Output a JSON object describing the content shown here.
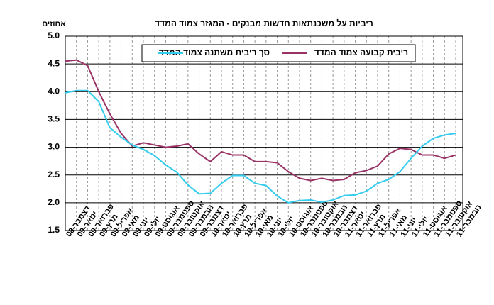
{
  "chart_data": {
    "type": "line",
    "title": "ריביות על משכנתאות חדשות מבנקים - המגזר צמוד המדד",
    "y_label": "אחוזים",
    "categories": [
      "דצמבר-08",
      "ינואר-09",
      "פברואר-09",
      "מרץ-09",
      "אפריל-09",
      "מאי-09",
      "יוני-09",
      "יולי-09",
      "אוגוסט-09",
      "ספטמבר-09",
      "אוקטובר-09",
      "נובמבר-09",
      "דצמבר-09",
      "ינואר-10",
      "פברואר-10",
      "מרץ-10",
      "אפריל-10",
      "מאי-10",
      "יוני-10",
      "יולי-10",
      "אוגוסט-10",
      "ספטמבר-10",
      "אוקטובר-10",
      "נובמבר-10",
      "דצמבר-10",
      "ינואר-11",
      "פברואר-11",
      "מרץ-11",
      "אפריל-11",
      "מאי-11",
      "יוני-11",
      "יולי-11",
      "אוגוסט-11",
      "ספטמבר-11",
      "אוקטובר-11",
      "נובמבר-11"
    ],
    "series": [
      {
        "name": "ריבית קבועה צמוד המדד",
        "color": "#993366",
        "values": [
          4.55,
          4.57,
          4.47,
          4.0,
          3.6,
          3.25,
          3.02,
          3.08,
          3.04,
          3.0,
          3.02,
          3.06,
          2.88,
          2.74,
          2.92,
          2.86,
          2.86,
          2.74,
          2.74,
          2.72,
          2.56,
          2.44,
          2.4,
          2.44,
          2.4,
          2.42,
          2.54,
          2.58,
          2.66,
          2.88,
          2.98,
          2.96,
          2.86,
          2.86,
          2.8,
          2.86
        ]
      },
      {
        "name": "סך ריבית משתנה צמוד המדד",
        "color": "#33ccee",
        "values": [
          3.98,
          4.02,
          4.02,
          3.82,
          3.35,
          3.18,
          3.04,
          2.96,
          2.85,
          2.68,
          2.55,
          2.32,
          2.16,
          2.17,
          2.35,
          2.49,
          2.49,
          2.35,
          2.31,
          2.12,
          2.0,
          2.04,
          2.05,
          2.01,
          2.05,
          2.13,
          2.14,
          2.21,
          2.35,
          2.42,
          2.56,
          2.8,
          3.02,
          3.16,
          3.22,
          3.25
        ]
      }
    ],
    "ylim": [
      1.5,
      5.0
    ],
    "yticks": [
      1.5,
      {
        "value": 2,
        "label": "2.0"
      },
      2.5,
      {
        "value": 3,
        "label": "3.0"
      },
      3.5,
      {
        "value": 4,
        "label": "4.0"
      },
      4.5,
      {
        "value": 5,
        "label": "5.0"
      }
    ],
    "grid": true
  }
}
